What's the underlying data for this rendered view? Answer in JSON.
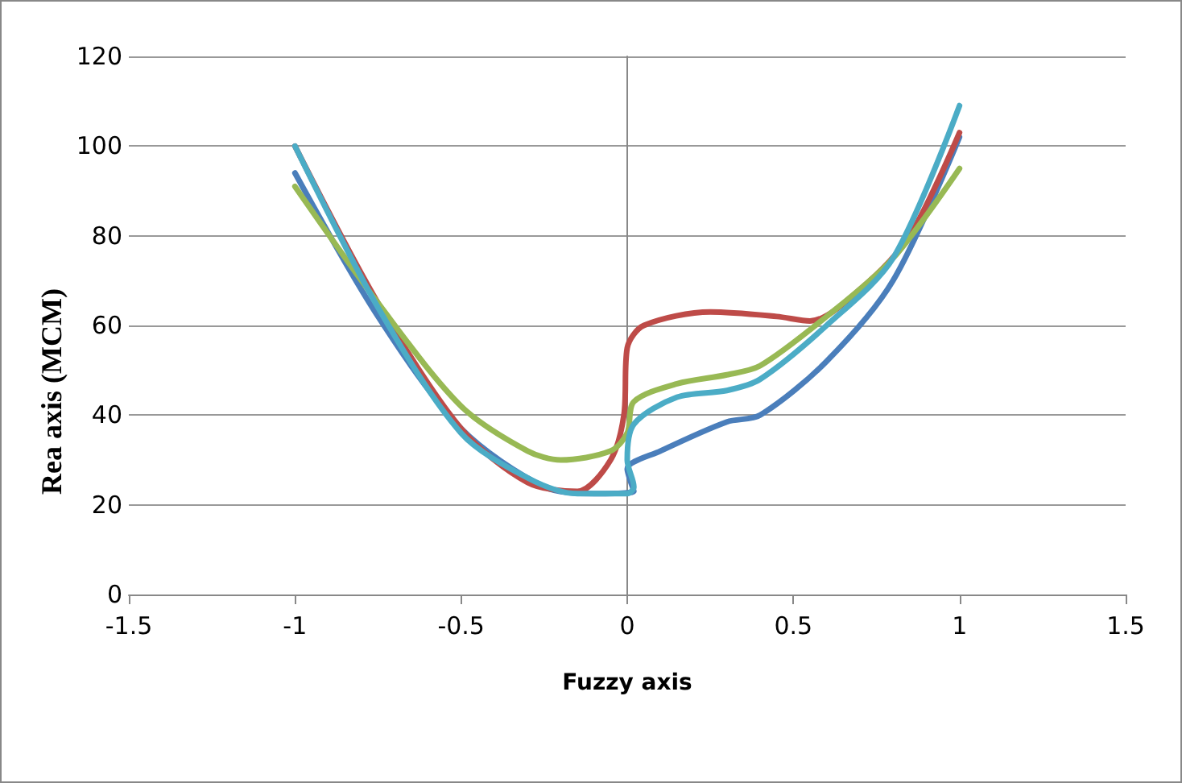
{
  "chart_data": {
    "type": "line",
    "xlabel": "Fuzzy axis",
    "ylabel": "Rea axis (MCM)",
    "xlim": [
      -1.5,
      1.5
    ],
    "xticks": [
      -1.5,
      -1,
      -0.5,
      0,
      0.5,
      1,
      1.5
    ],
    "ylim": [
      0,
      120
    ],
    "yticks": [
      0,
      20,
      40,
      60,
      80,
      100,
      120
    ],
    "grid": "y",
    "marker": "none",
    "line_style": "solid",
    "series": [
      {
        "color": "#4a7ebb",
        "x": [
          -1,
          -0.75,
          -0.5,
          -0.25,
          -0.1,
          0.02,
          0,
          0.1,
          0.3,
          0.4,
          0.6,
          0.8,
          1
        ],
        "values": [
          94,
          62,
          37,
          24,
          22.5,
          23,
          28,
          32,
          38.5,
          40,
          52,
          70,
          102
        ]
      },
      {
        "color": "#be4b48",
        "x": [
          -1,
          -0.75,
          -0.5,
          -0.3,
          -0.15,
          -0.05,
          -0.01,
          0,
          0.05,
          0.25,
          0.45,
          0.55,
          0.7,
          0.85,
          1
        ],
        "values": [
          100,
          65,
          37,
          25,
          23,
          30,
          40,
          55,
          60,
          63,
          62,
          61,
          68,
          80,
          103
        ]
      },
      {
        "color": "#98b954",
        "x": [
          -1,
          -0.75,
          -0.5,
          -0.3,
          -0.2,
          -0.05,
          0,
          0.02,
          0.15,
          0.3,
          0.4,
          0.6,
          0.8,
          1
        ],
        "values": [
          91,
          65,
          42,
          32,
          30,
          32,
          36,
          43,
          47,
          49,
          51,
          62,
          75,
          95
        ]
      },
      {
        "color": "#4bacc6",
        "x": [
          -1,
          -0.75,
          -0.5,
          -0.3,
          -0.15,
          0,
          0.02,
          0,
          0.02,
          0.15,
          0.3,
          0.4,
          0.6,
          0.8,
          1
        ],
        "values": [
          100,
          64,
          36,
          26,
          22.5,
          22.5,
          24,
          30,
          38,
          44,
          45.5,
          48,
          60,
          75,
          109
        ]
      }
    ]
  }
}
